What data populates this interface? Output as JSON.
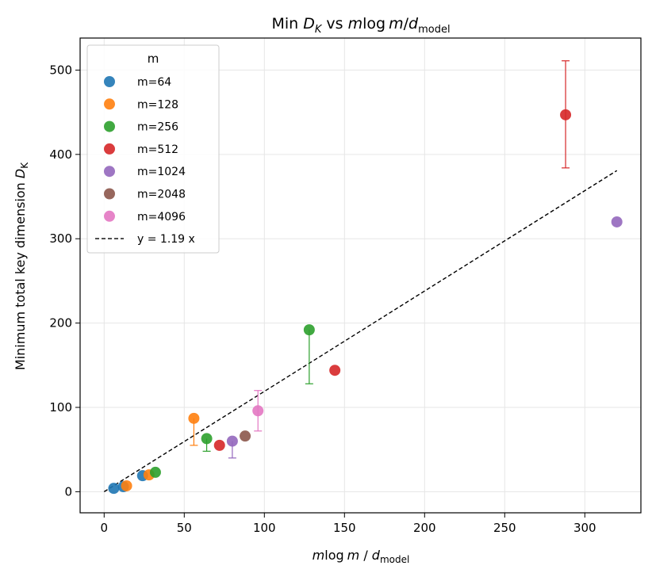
{
  "chart_data": {
    "type": "scatter",
    "title": "Min D_K vs m log m / d_model",
    "title_parts": {
      "prefix": "Min ",
      "dk": "D",
      "dk_sub": "K",
      "vs": " vs ",
      "m": "m",
      "log": "log",
      "m2": "m",
      "slash": "/",
      "d": "d",
      "d_sub": "model"
    },
    "xlabel": "m log m / d_model",
    "xlabel_parts": {
      "m": "m",
      "log": "log",
      "m2": "m",
      "slash": " / ",
      "d": "d",
      "d_sub": "model"
    },
    "ylabel": "Minimum total key dimension D_K",
    "ylabel_parts": {
      "text": "Minimum total key dimension ",
      "d": "D",
      "d_sub": "K"
    },
    "xlim": [
      -15,
      335
    ],
    "ylim": [
      -25,
      538
    ],
    "xticks": [
      0,
      50,
      100,
      150,
      200,
      250,
      300
    ],
    "yticks": [
      0,
      100,
      200,
      300,
      400,
      500
    ],
    "grid": true,
    "legend_title": "m",
    "legend_position": "upper-left",
    "series": [
      {
        "name": "m=64",
        "color": "#1f77b4",
        "points": [
          {
            "x": 6,
            "y": 4
          },
          {
            "x": 12,
            "y": 6
          },
          {
            "x": 24,
            "y": 19
          }
        ]
      },
      {
        "name": "m=128",
        "color": "#ff7f0e",
        "points": [
          {
            "x": 14,
            "y": 7
          },
          {
            "x": 28,
            "y": 20
          },
          {
            "x": 56,
            "y": 87,
            "err_low": 55
          }
        ]
      },
      {
        "name": "m=256",
        "color": "#2ca02c",
        "points": [
          {
            "x": 32,
            "y": 23
          },
          {
            "x": 64,
            "y": 63,
            "err_low": 48
          },
          {
            "x": 128,
            "y": 192,
            "err_low": 128
          }
        ]
      },
      {
        "name": "m=512",
        "color": "#d62728",
        "points": [
          {
            "x": 72,
            "y": 55
          },
          {
            "x": 144,
            "y": 144
          },
          {
            "x": 288,
            "y": 447,
            "err_low": 384,
            "err_high": 511
          }
        ]
      },
      {
        "name": "m=1024",
        "color": "#9467bd",
        "points": [
          {
            "x": 80,
            "y": 60,
            "err_low": 40
          },
          {
            "x": 320,
            "y": 320
          }
        ]
      },
      {
        "name": "m=2048",
        "color": "#8c564b",
        "points": [
          {
            "x": 88,
            "y": 66
          }
        ]
      },
      {
        "name": "m=4096",
        "color": "#e377c2",
        "points": [
          {
            "x": 96,
            "y": 96,
            "err_low": 72,
            "err_high": 120
          }
        ]
      }
    ],
    "fit_line": {
      "label": "y = 1.19 x",
      "slope": 1.19,
      "x_range": [
        0,
        320
      ],
      "color": "#000000"
    }
  }
}
